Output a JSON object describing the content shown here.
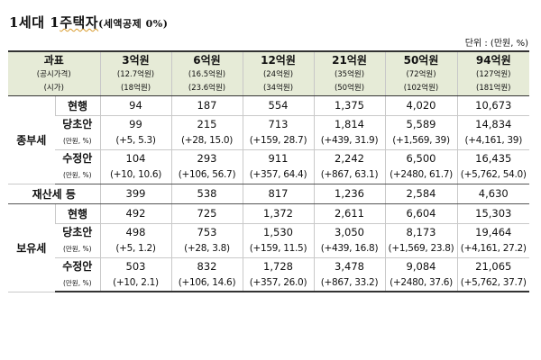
{
  "title": {
    "main_prefix": "1세대 1",
    "main_underlined": "주택자",
    "sub": "(세액공제 0%)"
  },
  "unit_note": "단위 : (만원, %)",
  "header": {
    "col0": [
      "과표",
      "(공시가격)",
      "(시가)"
    ],
    "columns": [
      {
        "label": "3억원",
        "public_price": "(12.7억원)",
        "market_price": "(18억원)"
      },
      {
        "label": "6억원",
        "public_price": "(16.5억원)",
        "market_price": "(23.6억원)"
      },
      {
        "label": "12억원",
        "public_price": "(24억원)",
        "market_price": "(34억원)"
      },
      {
        "label": "21억원",
        "public_price": "(35억원)",
        "market_price": "(50억원)"
      },
      {
        "label": "50억원",
        "public_price": "(72억원)",
        "market_price": "(102억원)"
      },
      {
        "label": "94억원",
        "public_price": "(127억원)",
        "market_price": "(181억원)"
      }
    ]
  },
  "groups": {
    "jongbu": {
      "label": "종부세",
      "current": {
        "label": "현행",
        "values": [
          "94",
          "187",
          "554",
          "1,375",
          "4,020",
          "10,673"
        ]
      },
      "original": {
        "label": "당초안",
        "unit": "(만원, %)",
        "values": [
          "99",
          "215",
          "713",
          "1,814",
          "5,589",
          "14,834"
        ],
        "changes": [
          "(+5, 5.3)",
          "(+28, 15.0)",
          "(+159, 28.7)",
          "(+439, 31.9)",
          "(+1,569, 39)",
          "(+4,161, 39)"
        ]
      },
      "revised": {
        "label": "수정안",
        "unit": "(만원, %)",
        "values": [
          "104",
          "293",
          "911",
          "2,242",
          "6,500",
          "16,435"
        ],
        "changes": [
          "(+10, 10.6)",
          "(+106, 56.7)",
          "(+357, 64.4)",
          "(+867, 63.1)",
          "(+2480, 61.7)",
          "(+5,762, 54.0)"
        ]
      }
    },
    "property": {
      "label": "재산세 등",
      "values": [
        "399",
        "538",
        "817",
        "1,236",
        "2,584",
        "4,630"
      ]
    },
    "boyu": {
      "label": "보유세",
      "current": {
        "label": "현행",
        "values": [
          "492",
          "725",
          "1,372",
          "2,611",
          "6,604",
          "15,303"
        ]
      },
      "original": {
        "label": "당초안",
        "unit": "(만원, %)",
        "values": [
          "498",
          "753",
          "1,530",
          "3,050",
          "8,173",
          "19,464"
        ],
        "changes": [
          "(+5, 1.2)",
          "(+28, 3.8)",
          "(+159, 11.5)",
          "(+439, 16.8)",
          "(+1,569, 23.8)",
          "(+4,161, 27.2)"
        ]
      },
      "revised": {
        "label": "수정안",
        "unit": "(만원, %)",
        "values": [
          "503",
          "832",
          "1,728",
          "3,478",
          "9,084",
          "21,065"
        ],
        "changes": [
          "(+10, 2.1)",
          "(+106, 14.6)",
          "(+357, 26.0)",
          "(+867, 33.2)",
          "(+2480, 37.6)",
          "(+5,762, 37.7)"
        ]
      }
    }
  }
}
